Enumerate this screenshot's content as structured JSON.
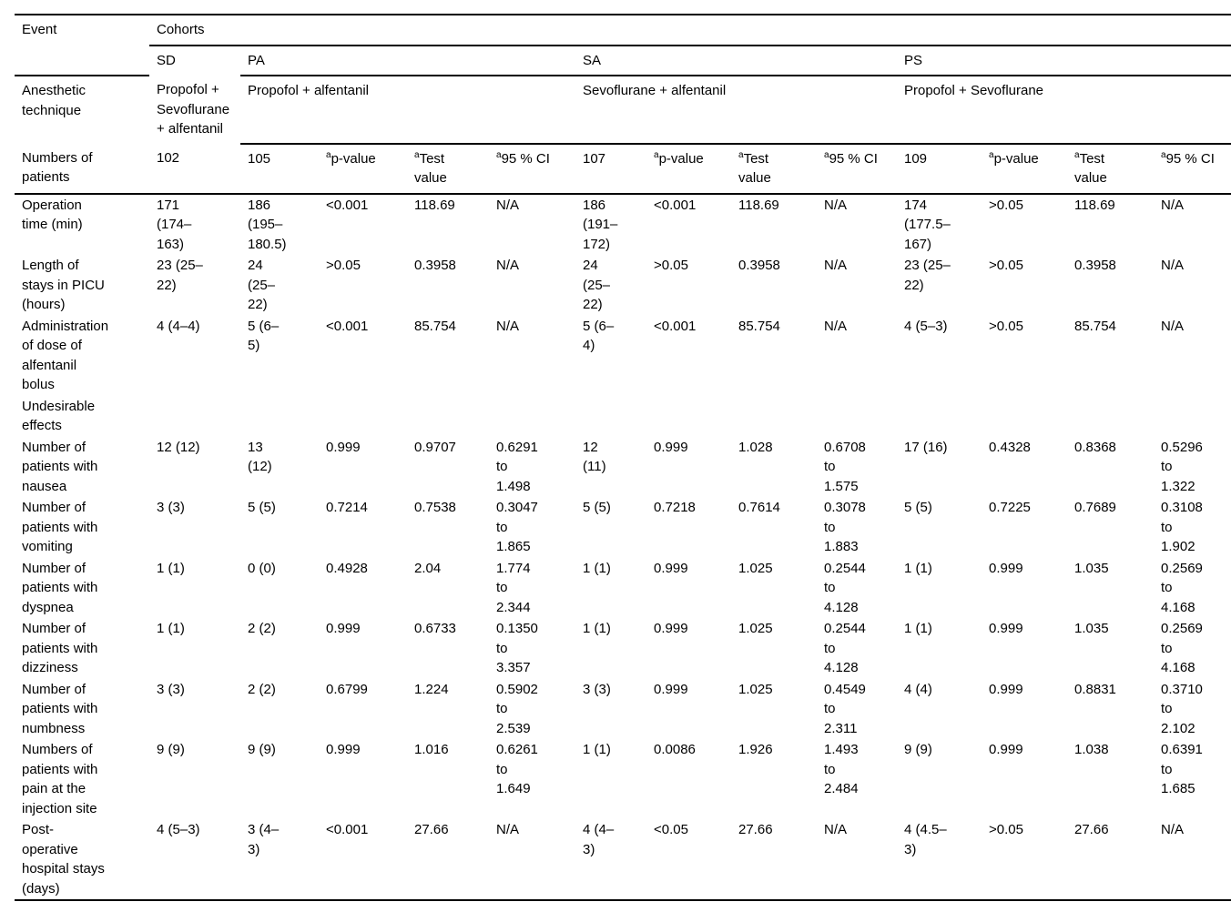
{
  "table": {
    "header": {
      "event_label": "Event",
      "cohorts_label": "Cohorts",
      "anesthetic_row_label": "Anesthetic technique",
      "patients_row_label": "Numbers of patients",
      "sd": {
        "code": "SD",
        "technique": "Propofol +\nSevoflurane\n+ alfentanil",
        "n": "102"
      },
      "groups": [
        {
          "code": "PA",
          "technique": "Propofol + alfentanil",
          "n": "105"
        },
        {
          "code": "SA",
          "technique": "Sevoflurane + alfentanil",
          "n": "107"
        },
        {
          "code": "PS",
          "technique": "Propofol + Sevoflurane",
          "n": "109"
        }
      ],
      "stat": {
        "sup": "a",
        "p_label": "p-value",
        "test_label": "Test value",
        "ci_label": "95 % CI"
      }
    },
    "rows": [
      {
        "event": "Operation time (min)",
        "sd": "171 (174–163)",
        "groups": [
          {
            "value": "186 (195–180.5)",
            "p": "<0.001",
            "test": "118.69",
            "ci": "N/A"
          },
          {
            "value": "186 (191–172)",
            "p": "<0.001",
            "test": "118.69",
            "ci": "N/A"
          },
          {
            "value": "174 (177.5–167)",
            "p": ">0.05",
            "test": "118.69",
            "ci": "N/A"
          }
        ]
      },
      {
        "event": "Length of stays in PICU (hours)",
        "sd": "23 (25–22)",
        "groups": [
          {
            "value": "24 (25–22)",
            "p": ">0.05",
            "test": "0.3958",
            "ci": "N/A"
          },
          {
            "value": "24 (25–22)",
            "p": ">0.05",
            "test": "0.3958",
            "ci": "N/A"
          },
          {
            "value": "23 (25–22)",
            "p": ">0.05",
            "test": "0.3958",
            "ci": "N/A"
          }
        ]
      },
      {
        "event": "Administration of dose of alfentanil bolus",
        "sd": "4 (4–4)",
        "groups": [
          {
            "value": "5 (6–5)",
            "p": "<0.001",
            "test": "85.754",
            "ci": "N/A"
          },
          {
            "value": "5 (6–4)",
            "p": "<0.001",
            "test": "85.754",
            "ci": "N/A"
          },
          {
            "value": "4 (5–3)",
            "p": ">0.05",
            "test": "85.754",
            "ci": "N/A"
          }
        ]
      },
      {
        "event": "Undesirable effects",
        "section": true
      },
      {
        "event": "Number of patients with nausea",
        "sd": "12 (12)",
        "groups": [
          {
            "value": "13 (12)",
            "p": "0.999",
            "test": "0.9707",
            "ci": "0.6291 to 1.498"
          },
          {
            "value": "12 (11)",
            "p": "0.999",
            "test": "1.028",
            "ci": "0.6708 to 1.575"
          },
          {
            "value": "17 (16)",
            "p": "0.4328",
            "test": "0.8368",
            "ci": "0.5296 to 1.322"
          }
        ]
      },
      {
        "event": "Number of patients with vomiting",
        "sd": "3 (3)",
        "groups": [
          {
            "value": "5 (5)",
            "p": "0.7214",
            "test": "0.7538",
            "ci": "0.3047 to 1.865"
          },
          {
            "value": "5 (5)",
            "p": "0.7218",
            "test": "0.7614",
            "ci": "0.3078 to 1.883"
          },
          {
            "value": "5 (5)",
            "p": "0.7225",
            "test": "0.7689",
            "ci": "0.3108 to 1.902"
          }
        ]
      },
      {
        "event": "Number of patients with dyspnea",
        "sd": "1 (1)",
        "groups": [
          {
            "value": "0 (0)",
            "p": "0.4928",
            "test": "2.04",
            "ci": "1.774 to 2.344"
          },
          {
            "value": "1 (1)",
            "p": "0.999",
            "test": "1.025",
            "ci": "0.2544 to 4.128"
          },
          {
            "value": "1 (1)",
            "p": "0.999",
            "test": "1.035",
            "ci": "0.2569 to 4.168"
          }
        ]
      },
      {
        "event": "Number of patients with dizziness",
        "sd": "1 (1)",
        "groups": [
          {
            "value": "2 (2)",
            "p": "0.999",
            "test": "0.6733",
            "ci": "0.1350 to 3.357"
          },
          {
            "value": "1 (1)",
            "p": "0.999",
            "test": "1.025",
            "ci": "0.2544 to 4.128"
          },
          {
            "value": "1 (1)",
            "p": "0.999",
            "test": "1.035",
            "ci": "0.2569 to 4.168"
          }
        ]
      },
      {
        "event": "Number of patients with numbness",
        "sd": "3 (3)",
        "groups": [
          {
            "value": "2 (2)",
            "p": "0.6799",
            "test": "1.224",
            "ci": "0.5902 to 2.539"
          },
          {
            "value": "3 (3)",
            "p": "0.999",
            "test": "1.025",
            "ci": "0.4549 to 2.311"
          },
          {
            "value": "4 (4)",
            "p": "0.999",
            "test": "0.8831",
            "ci": "0.3710 to 2.102"
          }
        ]
      },
      {
        "event": "Numbers of patients with pain at the injection site",
        "sd": "9 (9)",
        "groups": [
          {
            "value": "9 (9)",
            "p": "0.999",
            "test": "1.016",
            "ci": "0.6261 to 1.649"
          },
          {
            "value": "1 (1)",
            "p": "0.0086",
            "test": "1.926",
            "ci": "1.493 to 2.484"
          },
          {
            "value": "9 (9)",
            "p": "0.999",
            "test": "1.038",
            "ci": "0.6391 to 1.685"
          }
        ]
      },
      {
        "event": "Post-operative hospital stays (days)",
        "sd": "4 (5–3)",
        "groups": [
          {
            "value": "3 (4–3)",
            "p": "<0.001",
            "test": "27.66",
            "ci": "N/A"
          },
          {
            "value": "4 (4–3)",
            "p": "<0.05",
            "test": "27.66",
            "ci": "N/A"
          },
          {
            "value": "4 (4.5–3)",
            "p": ">0.05",
            "test": "27.66",
            "ci": "N/A"
          }
        ]
      }
    ]
  }
}
